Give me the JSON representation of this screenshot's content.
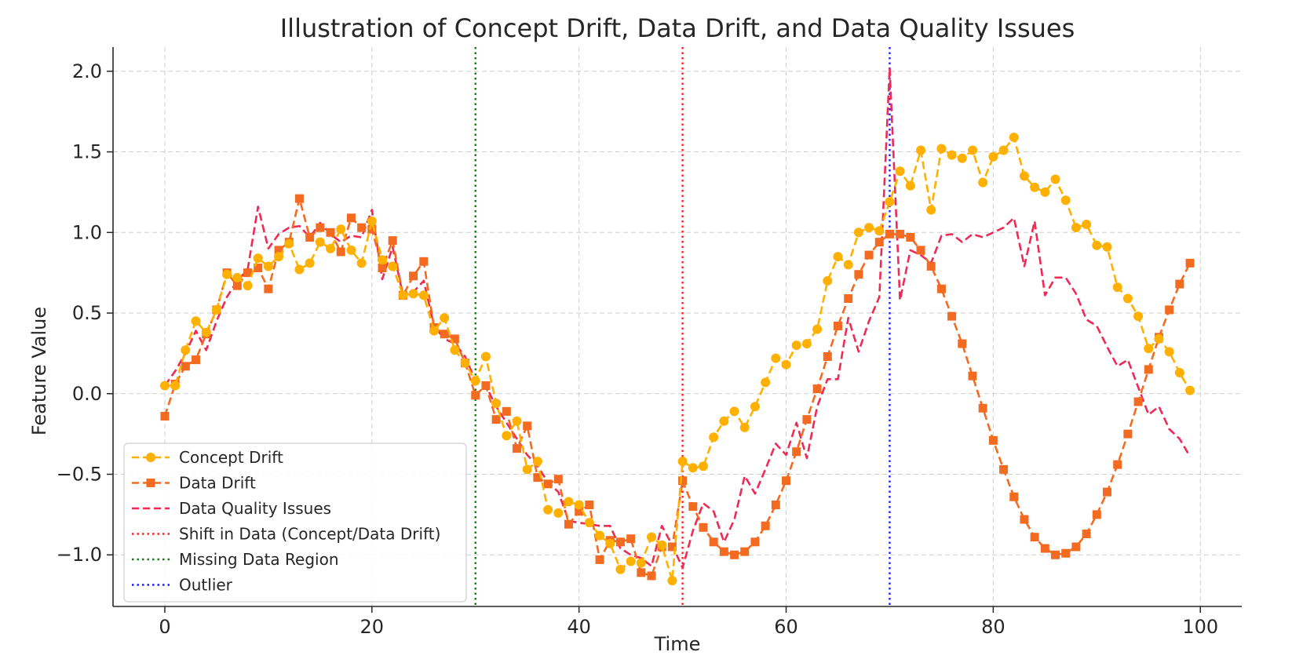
{
  "chart_data": {
    "type": "line",
    "title": "Illustration of Concept Drift, Data Drift, and Data Quality Issues",
    "xlabel": "Time",
    "ylabel": "Feature Value",
    "xlim": [
      -5,
      104
    ],
    "ylim": [
      -1.32,
      2.15
    ],
    "xticks": [
      0,
      20,
      40,
      60,
      80,
      100
    ],
    "xtick_labels": [
      "0",
      "20",
      "40",
      "60",
      "80",
      "100"
    ],
    "yticks": [
      -1.0,
      -0.5,
      0.0,
      0.5,
      1.0,
      1.5,
      2.0
    ],
    "ytick_labels": [
      "−1.0",
      "−0.5",
      "0.0",
      "0.5",
      "1.0",
      "1.5",
      "2.0"
    ],
    "grid": true,
    "legend_position": "lower-left",
    "series": [
      {
        "name": "Concept Drift",
        "style": "dashed",
        "marker": "circle",
        "color": "#FFB000",
        "values": [
          0.05,
          0.05,
          0.27,
          0.45,
          0.38,
          0.52,
          0.74,
          0.72,
          0.67,
          0.84,
          0.79,
          0.85,
          0.93,
          0.77,
          0.81,
          0.94,
          0.9,
          1.02,
          0.89,
          0.81,
          1.07,
          0.83,
          0.79,
          0.61,
          0.62,
          0.61,
          0.39,
          0.47,
          0.27,
          0.19,
          0.08,
          0.23,
          -0.06,
          -0.26,
          -0.17,
          -0.47,
          -0.42,
          -0.72,
          -0.74,
          -0.67,
          -0.69,
          -0.8,
          -0.88,
          -0.93,
          -1.09,
          -1.04,
          -1.05,
          -0.89,
          -0.94,
          -1.16,
          -0.42,
          -0.46,
          -0.45,
          -0.27,
          -0.17,
          -0.11,
          -0.21,
          -0.08,
          0.07,
          0.22,
          0.18,
          0.3,
          0.31,
          0.4,
          0.7,
          0.85,
          0.8,
          1.0,
          1.03,
          1.01,
          1.19,
          1.38,
          1.29,
          1.51,
          1.14,
          1.52,
          1.48,
          1.46,
          1.51,
          1.31,
          1.47,
          1.51,
          1.59,
          1.35,
          1.28,
          1.25,
          1.33,
          1.2,
          1.03,
          1.05,
          0.92,
          0.91,
          0.66,
          0.59,
          0.48,
          0.28,
          0.34,
          0.26,
          0.13,
          0.02
        ]
      },
      {
        "name": "Data Drift",
        "style": "dashed",
        "marker": "square",
        "color": "#F26B21",
        "values": [
          -0.14,
          0.06,
          0.17,
          0.21,
          0.37,
          0.52,
          0.75,
          0.67,
          0.75,
          0.78,
          0.65,
          0.89,
          0.94,
          1.21,
          0.97,
          1.03,
          1.0,
          0.88,
          1.09,
          1.03,
          1.02,
          0.78,
          0.95,
          0.61,
          0.73,
          0.82,
          0.41,
          0.37,
          0.34,
          0.19,
          -0.01,
          0.05,
          -0.16,
          -0.11,
          -0.34,
          -0.2,
          -0.52,
          -0.56,
          -0.53,
          -0.81,
          -0.73,
          -0.69,
          -1.03,
          -0.91,
          -0.92,
          -0.9,
          -1.11,
          -1.13,
          -0.95,
          -0.95,
          -0.54,
          -0.7,
          -0.83,
          -0.92,
          -0.98,
          -1.0,
          -0.98,
          -0.92,
          -0.82,
          -0.69,
          -0.54,
          -0.36,
          -0.16,
          0.03,
          0.23,
          0.42,
          0.59,
          0.74,
          0.86,
          0.94,
          0.99,
          0.99,
          0.97,
          0.89,
          0.79,
          0.65,
          0.48,
          0.31,
          0.11,
          -0.09,
          -0.29,
          -0.47,
          -0.64,
          -0.78,
          -0.89,
          -0.96,
          -1.0,
          -0.99,
          -0.95,
          -0.87,
          -0.75,
          -0.61,
          -0.44,
          -0.25,
          -0.05,
          0.15,
          0.35,
          0.52,
          0.68,
          0.81
        ]
      },
      {
        "name": "Data Quality Issues",
        "style": "dashed",
        "marker": "none",
        "color": "#EE2A55",
        "values": [
          0.05,
          0.14,
          0.25,
          0.39,
          0.27,
          0.45,
          0.6,
          0.7,
          0.77,
          1.16,
          0.9,
          0.99,
          1.03,
          1.04,
          0.97,
          1.06,
          0.99,
          0.94,
          0.98,
          0.97,
          1.14,
          0.71,
          0.91,
          0.61,
          0.63,
          0.7,
          0.42,
          0.34,
          0.31,
          0.23,
          0.08,
          0.05,
          -0.08,
          -0.18,
          -0.28,
          -0.38,
          -0.45,
          -0.55,
          -0.61,
          -0.79,
          -0.8,
          -0.81,
          -0.82,
          -0.82,
          -0.96,
          -1.0,
          -1.02,
          -1.07,
          -0.82,
          -0.94,
          -1.08,
          -0.85,
          -0.68,
          -0.73,
          -0.92,
          -0.78,
          -0.51,
          -0.62,
          -0.47,
          -0.31,
          -0.38,
          -0.18,
          -0.4,
          -0.08,
          0.09,
          0.09,
          0.47,
          0.26,
          0.45,
          0.6,
          2.02,
          0.58,
          0.89,
          0.86,
          0.81,
          0.98,
          0.99,
          0.94,
          0.99,
          0.97,
          1.0,
          1.03,
          1.09,
          0.79,
          1.07,
          0.61,
          0.72,
          0.72,
          0.62,
          0.46,
          0.42,
          0.29,
          0.17,
          0.21,
          0.04,
          -0.13,
          -0.08,
          -0.22,
          -0.28,
          -0.39
        ]
      }
    ],
    "vlines": [
      {
        "name": "Shift in Data (Concept/Data Drift)",
        "x": 50,
        "color": "#FF2020"
      },
      {
        "name": "Missing Data Region",
        "x": 30,
        "color": "#1A7A1A"
      },
      {
        "name": "Outlier",
        "x": 70,
        "color": "#1F1FFF"
      }
    ]
  }
}
